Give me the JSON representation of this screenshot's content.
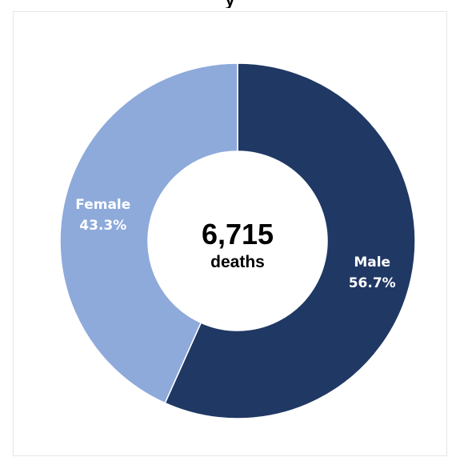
{
  "chart_data": {
    "type": "pie",
    "title": "…y…",
    "center_value": "6,715",
    "center_unit": "deaths",
    "slices": [
      {
        "label": "Male",
        "percent_label": "56.7%",
        "value": 56.7,
        "color": "#203864"
      },
      {
        "label": "Female",
        "percent_label": "43.3%",
        "value": 43.3,
        "color": "#8eaadb"
      }
    ],
    "legend": "none"
  }
}
